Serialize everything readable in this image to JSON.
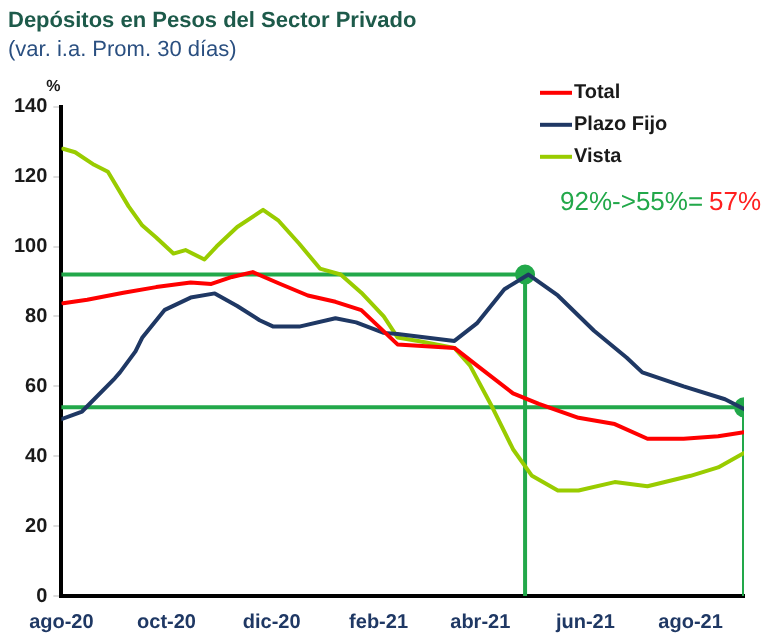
{
  "chart_data": {
    "type": "line",
    "title": "Depósitos en Pesos del Sector Privado",
    "subtitle": "(var. i.a. Prom. 30 días)",
    "ylabel": "%",
    "xlim": [
      "2020-08-01",
      "2021-09-01"
    ],
    "ylim": [
      0,
      140
    ],
    "yticks": [
      0,
      20,
      40,
      60,
      80,
      100,
      120,
      140
    ],
    "xticks": [
      {
        "value": "2020-08-01",
        "label": "ago-20"
      },
      {
        "value": "2020-10-01",
        "label": "oct-20"
      },
      {
        "value": "2020-12-01",
        "label": "dic-20"
      },
      {
        "value": "2021-02-01",
        "label": "feb-21"
      },
      {
        "value": "2021-04-01",
        "label": "abr-21"
      },
      {
        "value": "2021-06-01",
        "label": "jun-21"
      },
      {
        "value": "2021-08-01",
        "label": "ago-21"
      }
    ],
    "grid": false,
    "legend": "top right",
    "marker": "none",
    "line_style": "solid",
    "annotations": [
      "92%->55%=",
      "57%"
    ],
    "series": [
      {
        "name": "Total",
        "color": "#ff0000",
        "x": [
          "2020-08-02",
          "2020-08-16",
          "2020-09-06",
          "2020-09-25",
          "2020-10-15",
          "2020-10-27",
          "2020-11-08",
          "2020-11-20",
          "2020-12-05",
          "2020-12-22",
          "2021-01-07",
          "2021-01-22",
          "2021-02-12",
          "2021-03-17",
          "2021-03-30",
          "2021-04-20",
          "2021-05-05",
          "2021-05-28",
          "2021-06-18",
          "2021-07-07",
          "2021-07-28",
          "2021-08-17",
          "2021-09-01"
        ],
        "values": [
          83.8,
          84.8,
          86.8,
          88.4,
          89.7,
          89.3,
          91.3,
          92.7,
          89.5,
          86,
          84.2,
          81.8,
          72,
          71,
          66,
          58,
          55,
          51,
          49.2,
          45,
          45,
          45.7,
          46.9
        ]
      },
      {
        "name": "Plazo Fijo",
        "color": "#1f3864",
        "x": [
          "2020-08-01",
          "2020-08-13",
          "2020-09-01",
          "2020-09-04",
          "2020-09-13",
          "2020-09-17",
          "2020-09-30",
          "2020-10-15",
          "2020-10-29",
          "2020-11-11",
          "2020-11-24",
          "2020-12-02",
          "2020-12-17",
          "2021-01-07",
          "2021-01-19",
          "2021-02-04",
          "2021-02-12",
          "2021-03-17",
          "2021-03-30",
          "2021-04-15",
          "2021-04-29",
          "2021-05-16",
          "2021-06-06",
          "2021-06-25",
          "2021-07-04",
          "2021-07-28",
          "2021-08-21",
          "2021-09-01"
        ],
        "values": [
          50.6,
          52.8,
          62.3,
          64,
          70,
          74,
          81.9,
          85.4,
          86.6,
          83,
          78.9,
          77.1,
          77.1,
          79.5,
          78.3,
          75.3,
          75,
          73,
          78,
          87.8,
          92,
          86,
          75.9,
          68.2,
          64,
          60,
          56.3,
          53.5
        ]
      },
      {
        "name": "Vista",
        "color": "#99cc00",
        "x": [
          "2020-08-02",
          "2020-08-09",
          "2020-08-20",
          "2020-08-28",
          "2020-09-09",
          "2020-09-17",
          "2020-09-25",
          "2020-10-05",
          "2020-10-12",
          "2020-10-23",
          "2020-10-30",
          "2020-11-11",
          "2020-11-26",
          "2020-12-05",
          "2020-12-17",
          "2020-12-29",
          "2021-01-10",
          "2021-01-22",
          "2021-02-04",
          "2021-02-12",
          "2021-02-24",
          "2021-03-17",
          "2021-03-26",
          "2021-04-08",
          "2021-04-20",
          "2021-05-01",
          "2021-05-16",
          "2021-05-28",
          "2021-06-18",
          "2021-07-07",
          "2021-08-01",
          "2021-08-17",
          "2021-09-01"
        ],
        "values": [
          128,
          127,
          123.4,
          121.4,
          111.5,
          106,
          102.6,
          98,
          99,
          96.3,
          100,
          105.6,
          110.5,
          107.4,
          100.8,
          93.7,
          92,
          86.8,
          80,
          74,
          73,
          71,
          66,
          54,
          42,
          34.4,
          30.2,
          30.2,
          32.6,
          31.4,
          34.4,
          36.8,
          40.9
        ]
      },
      {
        "type": "line",
        "color": "#22a84a",
        "x": [
          "2020-08-01",
          "2021-04-27"
        ],
        "values": [
          92,
          92
        ]
      },
      {
        "type": "line",
        "color": "#22a84a",
        "x": [
          "2021-04-27",
          "2021-04-27"
        ],
        "values": [
          0,
          92
        ]
      },
      {
        "type": "line",
        "color": "#22a84a",
        "x": [
          "2020-08-01",
          "2021-09-01"
        ],
        "values": [
          54,
          54
        ]
      },
      {
        "type": "line",
        "color": "#22a84a",
        "x": [
          "2021-09-01",
          "2021-09-01"
        ],
        "values": [
          0,
          54
        ]
      },
      {
        "type": "scatter",
        "marker": "circle",
        "color": "#22a84a",
        "x": [
          "2021-04-27",
          "2021-09-01"
        ],
        "values": [
          92,
          54
        ]
      }
    ]
  }
}
